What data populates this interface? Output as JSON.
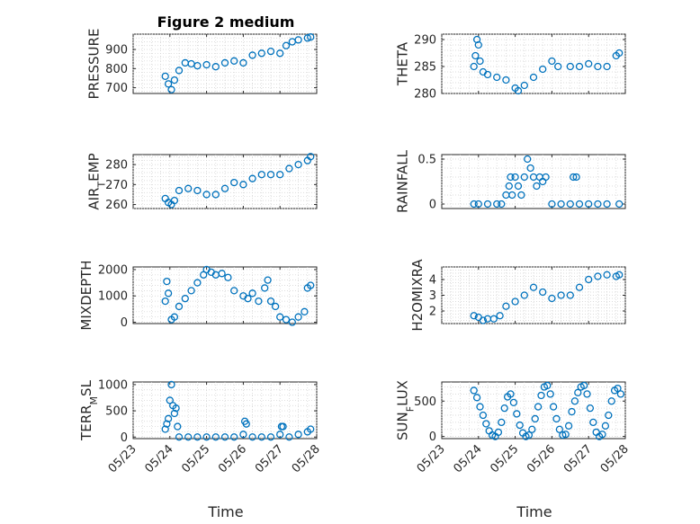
{
  "title": "Figure 2 medium",
  "xlabel": "Time",
  "x_tick_labels": [
    "05/23",
    "05/24",
    "05/25",
    "05/26",
    "05/27",
    "05/28"
  ],
  "marker_color": "#0072bd",
  "chart_data": [
    {
      "type": "scatter",
      "ylabel": "PRESSURE",
      "ylim": [
        670,
        980
      ],
      "yticks": [
        700,
        800,
        900
      ],
      "ytick_labels": [
        "700",
        "800",
        "900"
      ],
      "grid": true,
      "x": [
        "05/23 21:00",
        "05/23 23:00",
        "05/24 01:00",
        "05/24 03:00",
        "05/24 06:00",
        "05/24 10:00",
        "05/24 14:00",
        "05/24 18:00",
        "05/25 00:00",
        "05/25 06:00",
        "05/25 12:00",
        "05/25 18:00",
        "05/26 00:00",
        "05/26 06:00",
        "05/26 12:00",
        "05/26 18:00",
        "05/27 00:00",
        "05/27 04:00",
        "05/27 08:00",
        "05/27 12:00",
        "05/27 18:00",
        "05/27 20:00"
      ],
      "y": [
        760,
        720,
        690,
        740,
        790,
        830,
        825,
        815,
        820,
        810,
        830,
        840,
        830,
        870,
        880,
        890,
        880,
        920,
        940,
        950,
        960,
        965
      ]
    },
    {
      "type": "scatter",
      "ylabel": "THETA",
      "ylim": [
        280,
        291
      ],
      "yticks": [
        280,
        285,
        290
      ],
      "ytick_labels": [
        "280",
        "285",
        "290"
      ],
      "grid": true,
      "x": [
        "05/23 21:00",
        "05/23 22:00",
        "05/23 23:00",
        "05/24 00:00",
        "05/24 01:00",
        "05/24 03:00",
        "05/24 06:00",
        "05/24 12:00",
        "05/24 18:00",
        "05/25 00:00",
        "05/25 02:00",
        "05/25 06:00",
        "05/25 12:00",
        "05/25 18:00",
        "05/26 00:00",
        "05/26 04:00",
        "05/26 12:00",
        "05/26 18:00",
        "05/27 00:00",
        "05/27 06:00",
        "05/27 12:00",
        "05/27 18:00",
        "05/27 20:00"
      ],
      "y": [
        285,
        287,
        290,
        289,
        286,
        284,
        283.5,
        283,
        282.5,
        281,
        280.5,
        281.5,
        283,
        284.5,
        286,
        285,
        285,
        285,
        285.5,
        285,
        285,
        287,
        287.5
      ]
    },
    {
      "type": "scatter",
      "ylabel": "AIR_TEMP",
      "ylim": [
        258,
        285
      ],
      "yticks": [
        260,
        270,
        280
      ],
      "ytick_labels": [
        "260",
        "270",
        "280"
      ],
      "grid": true,
      "x": [
        "05/23 21:00",
        "05/23 23:00",
        "05/24 01:00",
        "05/24 03:00",
        "05/24 06:00",
        "05/24 12:00",
        "05/24 18:00",
        "05/25 00:00",
        "05/25 06:00",
        "05/25 12:00",
        "05/25 18:00",
        "05/26 00:00",
        "05/26 06:00",
        "05/26 12:00",
        "05/26 18:00",
        "05/27 00:00",
        "05/27 06:00",
        "05/27 12:00",
        "05/27 18:00",
        "05/27 20:00"
      ],
      "y": [
        263,
        261,
        260,
        262,
        267,
        268,
        267,
        265,
        265,
        268,
        271,
        270,
        273,
        275,
        275,
        275,
        278,
        280,
        282,
        284
      ]
    },
    {
      "type": "scatter",
      "ylabel": "RAINFALL",
      "ylim": [
        -0.05,
        0.55
      ],
      "yticks": [
        0,
        0.5
      ],
      "ytick_labels": [
        "0",
        "0.5"
      ],
      "grid": true,
      "x": [
        "05/23 21:00",
        "05/24 00:00",
        "05/24 06:00",
        "05/24 12:00",
        "05/24 15:00",
        "05/24 18:00",
        "05/24 20:00",
        "05/24 21:00",
        "05/24 22:00",
        "05/25 00:00",
        "05/25 02:00",
        "05/25 04:00",
        "05/25 06:00",
        "05/25 08:00",
        "05/25 10:00",
        "05/25 12:00",
        "05/25 14:00",
        "05/25 16:00",
        "05/25 18:00",
        "05/25 20:00",
        "05/26 00:00",
        "05/26 06:00",
        "05/26 12:00",
        "05/26 14:00",
        "05/26 16:00",
        "05/26 18:00",
        "05/27 00:00",
        "05/27 06:00",
        "05/27 12:00",
        "05/27 20:00"
      ],
      "y": [
        0,
        0,
        0,
        0,
        0,
        0.1,
        0.2,
        0.3,
        0.1,
        0.3,
        0.2,
        0.1,
        0.3,
        0.5,
        0.4,
        0.3,
        0.2,
        0.3,
        0.25,
        0.3,
        0,
        0,
        0,
        0.3,
        0.3,
        0,
        0,
        0,
        0,
        0
      ]
    },
    {
      "type": "scatter",
      "ylabel": "MIXDEPTH",
      "ylim": [
        -50,
        2100
      ],
      "yticks": [
        0,
        1000,
        2000
      ],
      "ytick_labels": [
        "0",
        "1000",
        "2000"
      ],
      "grid": true,
      "x": [
        "05/23 21:00",
        "05/23 22:00",
        "05/23 23:00",
        "05/24 01:00",
        "05/24 03:00",
        "05/24 06:00",
        "05/24 10:00",
        "05/24 14:00",
        "05/24 18:00",
        "05/24 22:00",
        "05/25 00:00",
        "05/25 03:00",
        "05/25 06:00",
        "05/25 10:00",
        "05/25 14:00",
        "05/25 18:00",
        "05/26 00:00",
        "05/26 03:00",
        "05/26 06:00",
        "05/26 10:00",
        "05/26 14:00",
        "05/26 16:00",
        "05/26 18:00",
        "05/26 21:00",
        "05/27 00:00",
        "05/27 04:00",
        "05/27 08:00",
        "05/27 12:00",
        "05/27 16:00",
        "05/27 18:00",
        "05/27 20:00"
      ],
      "y": [
        800,
        1550,
        1100,
        100,
        200,
        600,
        900,
        1200,
        1500,
        1800,
        2000,
        1900,
        1800,
        1850,
        1700,
        1200,
        1000,
        900,
        1100,
        800,
        1300,
        1600,
        800,
        600,
        200,
        100,
        0,
        200,
        400,
        1300,
        1400
      ]
    },
    {
      "type": "scatter",
      "ylabel": "H2OMIXRA",
      "ylim": [
        1.2,
        4.8
      ],
      "yticks": [
        2,
        3,
        4
      ],
      "ytick_labels": [
        "2",
        "3",
        "4"
      ],
      "grid": true,
      "x": [
        "05/23 21:00",
        "05/24 00:00",
        "05/24 03:00",
        "05/24 06:00",
        "05/24 10:00",
        "05/24 14:00",
        "05/24 18:00",
        "05/25 00:00",
        "05/25 06:00",
        "05/25 12:00",
        "05/25 18:00",
        "05/26 00:00",
        "05/26 06:00",
        "05/26 12:00",
        "05/26 18:00",
        "05/27 00:00",
        "05/27 06:00",
        "05/27 12:00",
        "05/27 18:00",
        "05/27 20:00"
      ],
      "y": [
        1.7,
        1.6,
        1.4,
        1.5,
        1.5,
        1.7,
        2.3,
        2.6,
        3.0,
        3.5,
        3.2,
        2.8,
        3.0,
        3.0,
        3.5,
        4.0,
        4.2,
        4.3,
        4.2,
        4.3
      ]
    },
    {
      "type": "scatter",
      "ylabel": "TERR_MSL",
      "ylim": [
        -30,
        1050
      ],
      "yticks": [
        0,
        500,
        1000
      ],
      "ytick_labels": [
        "0",
        "500",
        "1000"
      ],
      "grid": true,
      "x": [
        "05/23 21:00",
        "05/23 22:00",
        "05/23 23:00",
        "05/24 00:00",
        "05/24 01:00",
        "05/24 02:00",
        "05/24 03:00",
        "05/24 04:00",
        "05/24 05:00",
        "05/24 06:00",
        "05/24 12:00",
        "05/24 18:00",
        "05/25 00:00",
        "05/25 06:00",
        "05/25 12:00",
        "05/25 18:00",
        "05/26 00:00",
        "05/26 01:00",
        "05/26 02:00",
        "05/26 06:00",
        "05/26 12:00",
        "05/26 18:00",
        "05/27 00:00",
        "05/27 01:00",
        "05/27 02:00",
        "05/27 06:00",
        "05/27 12:00",
        "05/27 18:00",
        "05/27 20:00"
      ],
      "y": [
        150,
        250,
        350,
        700,
        1000,
        600,
        450,
        550,
        200,
        0,
        0,
        0,
        0,
        0,
        0,
        0,
        50,
        300,
        250,
        0,
        0,
        0,
        50,
        200,
        200,
        0,
        50,
        100,
        150
      ]
    },
    {
      "type": "scatter",
      "ylabel": "SUN_FLUX",
      "ylim": [
        -30,
        770
      ],
      "yticks": [
        0,
        500
      ],
      "ytick_labels": [
        "0",
        "500"
      ],
      "grid": true,
      "x": [
        "05/23 21:00",
        "05/23 23:00",
        "05/24 01:00",
        "05/24 03:00",
        "05/24 05:00",
        "05/24 07:00",
        "05/24 09:00",
        "05/24 11:00",
        "05/24 13:00",
        "05/24 15:00",
        "05/24 17:00",
        "05/24 19:00",
        "05/24 21:00",
        "05/24 23:00",
        "05/25 01:00",
        "05/25 03:00",
        "05/25 05:00",
        "05/25 07:00",
        "05/25 09:00",
        "05/25 11:00",
        "05/25 13:00",
        "05/25 15:00",
        "05/25 17:00",
        "05/25 19:00",
        "05/25 21:00",
        "05/25 23:00",
        "05/26 01:00",
        "05/26 03:00",
        "05/26 05:00",
        "05/26 07:00",
        "05/26 09:00",
        "05/26 11:00",
        "05/26 13:00",
        "05/26 15:00",
        "05/26 17:00",
        "05/26 19:00",
        "05/26 21:00",
        "05/26 23:00",
        "05/27 01:00",
        "05/27 03:00",
        "05/27 05:00",
        "05/27 07:00",
        "05/27 09:00",
        "05/27 11:00",
        "05/27 13:00",
        "05/27 15:00",
        "05/27 17:00",
        "05/27 19:00",
        "05/27 21:00"
      ],
      "y": [
        650,
        550,
        420,
        300,
        180,
        80,
        20,
        0,
        60,
        200,
        400,
        560,
        600,
        480,
        320,
        160,
        50,
        0,
        20,
        100,
        250,
        420,
        580,
        700,
        720,
        600,
        420,
        250,
        100,
        20,
        30,
        150,
        350,
        500,
        620,
        700,
        720,
        600,
        400,
        200,
        60,
        0,
        30,
        150,
        300,
        500,
        650,
        680,
        600
      ]
    }
  ]
}
